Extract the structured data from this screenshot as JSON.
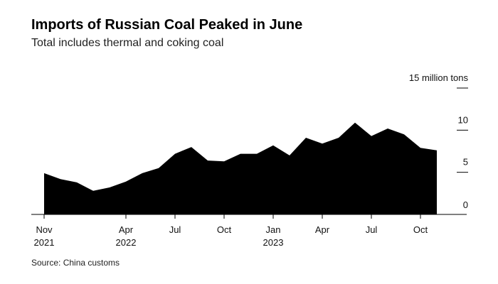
{
  "title": "Imports of Russian Coal Peaked in June",
  "subtitle": "Total includes thermal and coking coal",
  "source": "Source: China customs",
  "chart_data": {
    "type": "area",
    "title": "Imports of Russian Coal Peaked in June",
    "subtitle": "Total includes thermal and coking coal",
    "y_unit_label": "15 million tons",
    "ylim": [
      0,
      15
    ],
    "y_ticks": [
      {
        "value": 15,
        "label": "15 million tons"
      },
      {
        "value": 10,
        "label": "10"
      },
      {
        "value": 5,
        "label": "5"
      },
      {
        "value": 0,
        "label": "0"
      }
    ],
    "x_ticks": [
      {
        "index": 0,
        "line1": "Nov",
        "line2": "2021"
      },
      {
        "index": 5,
        "line1": "Apr",
        "line2": "2022"
      },
      {
        "index": 8,
        "line1": "Jul",
        "line2": ""
      },
      {
        "index": 11,
        "line1": "Oct",
        "line2": ""
      },
      {
        "index": 14,
        "line1": "Jan",
        "line2": "2023"
      },
      {
        "index": 17,
        "line1": "Apr",
        "line2": ""
      },
      {
        "index": 20,
        "line1": "Jul",
        "line2": ""
      },
      {
        "index": 23,
        "line1": "Oct",
        "line2": ""
      }
    ],
    "x": [
      "Nov 2021",
      "Dec 2021",
      "Jan 2022",
      "Feb 2022",
      "Mar 2022",
      "Apr 2022",
      "May 2022",
      "Jun 2022",
      "Jul 2022",
      "Aug 2022",
      "Sep 2022",
      "Oct 2022",
      "Nov 2022",
      "Dec 2022",
      "Jan 2023",
      "Feb 2023",
      "Mar 2023",
      "Apr 2023",
      "May 2023",
      "Jun 2023",
      "Jul 2023",
      "Aug 2023",
      "Sep 2023",
      "Oct 2023",
      "Nov 2023"
    ],
    "values": [
      4.9,
      4.2,
      3.8,
      2.8,
      3.2,
      3.9,
      4.9,
      5.5,
      7.2,
      8.0,
      6.4,
      6.3,
      7.2,
      7.2,
      8.2,
      7.0,
      9.1,
      8.4,
      9.1,
      10.9,
      9.3,
      10.2,
      9.5,
      7.9,
      7.6
    ],
    "grid": false,
    "legend": "none",
    "fill_color": "#000000",
    "axis_color": "#000000"
  }
}
